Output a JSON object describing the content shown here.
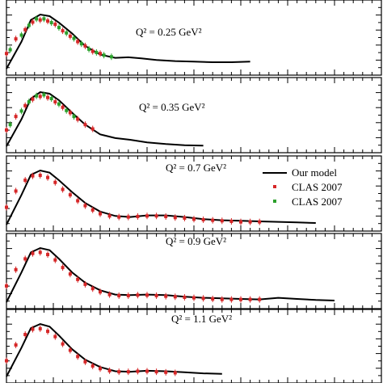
{
  "chart_data": [
    {
      "type": "scatter",
      "label": "Q² = 0.25 GeV²",
      "model": [
        [
          1.0,
          0.0
        ],
        [
          1.08,
          0.5
        ],
        [
          1.13,
          0.9
        ],
        [
          1.18,
          1.0
        ],
        [
          1.23,
          0.97
        ],
        [
          1.28,
          0.85
        ],
        [
          1.35,
          0.65
        ],
        [
          1.42,
          0.42
        ],
        [
          1.5,
          0.26
        ],
        [
          1.58,
          0.2
        ],
        [
          1.65,
          0.21
        ],
        [
          1.72,
          0.19
        ],
        [
          1.8,
          0.16
        ],
        [
          1.9,
          0.14
        ],
        [
          2.0,
          0.13
        ],
        [
          2.1,
          0.12
        ],
        [
          2.2,
          0.12
        ],
        [
          2.3,
          0.13
        ]
      ],
      "series": [
        {
          "name": "CLAS 2007",
          "color": "#d62728",
          "points": [
            [
              1.0,
              0.28
            ],
            [
              1.05,
              0.55
            ],
            [
              1.1,
              0.72
            ],
            [
              1.14,
              0.86
            ],
            [
              1.18,
              0.9
            ],
            [
              1.22,
              0.88
            ],
            [
              1.26,
              0.82
            ],
            [
              1.3,
              0.7
            ],
            [
              1.34,
              0.6
            ],
            [
              1.38,
              0.5
            ],
            [
              1.42,
              0.42
            ],
            [
              1.46,
              0.32
            ],
            [
              1.5,
              0.28
            ]
          ]
        },
        {
          "name": "CLAS 2007",
          "color": "#2ca02c",
          "points": [
            [
              1.02,
              0.35
            ],
            [
              1.08,
              0.62
            ],
            [
              1.12,
              0.8
            ],
            [
              1.16,
              0.92
            ],
            [
              1.2,
              0.92
            ],
            [
              1.24,
              0.85
            ],
            [
              1.28,
              0.76
            ],
            [
              1.32,
              0.66
            ],
            [
              1.36,
              0.56
            ],
            [
              1.4,
              0.46
            ],
            [
              1.44,
              0.36
            ],
            [
              1.48,
              0.3
            ],
            [
              1.52,
              0.25
            ],
            [
              1.56,
              0.22
            ]
          ]
        }
      ]
    },
    {
      "type": "scatter",
      "label": "Q² = 0.35 GeV²",
      "model": [
        [
          1.0,
          0.0
        ],
        [
          1.08,
          0.5
        ],
        [
          1.13,
          0.88
        ],
        [
          1.18,
          1.0
        ],
        [
          1.23,
          0.97
        ],
        [
          1.28,
          0.85
        ],
        [
          1.35,
          0.62
        ],
        [
          1.42,
          0.4
        ],
        [
          1.5,
          0.22
        ],
        [
          1.58,
          0.15
        ],
        [
          1.66,
          0.12
        ],
        [
          1.75,
          0.07
        ],
        [
          1.85,
          0.04
        ],
        [
          1.95,
          0.02
        ],
        [
          2.05,
          0.01
        ]
      ],
      "series": [
        {
          "name": "CLAS 2007",
          "color": "#d62728",
          "points": [
            [
              1.0,
              0.3
            ],
            [
              1.05,
              0.55
            ],
            [
              1.1,
              0.75
            ],
            [
              1.14,
              0.87
            ],
            [
              1.18,
              0.92
            ],
            [
              1.22,
              0.9
            ],
            [
              1.26,
              0.82
            ],
            [
              1.3,
              0.72
            ],
            [
              1.34,
              0.62
            ],
            [
              1.38,
              0.5
            ],
            [
              1.42,
              0.4
            ],
            [
              1.46,
              0.32
            ]
          ]
        },
        {
          "name": "CLAS 2007",
          "color": "#2ca02c",
          "points": [
            [
              1.02,
              0.4
            ],
            [
              1.08,
              0.65
            ],
            [
              1.12,
              0.82
            ],
            [
              1.16,
              0.93
            ],
            [
              1.2,
              0.95
            ],
            [
              1.24,
              0.88
            ],
            [
              1.28,
              0.78
            ],
            [
              1.32,
              0.66
            ],
            [
              1.36,
              0.55
            ]
          ]
        }
      ]
    },
    {
      "type": "scatter",
      "label": "Q² = 0.7 GeV²",
      "legend": {
        "model": "Our model",
        "series": [
          "CLAS 2007",
          "CLAS 2007"
        ]
      },
      "model": [
        [
          1.0,
          0.0
        ],
        [
          1.08,
          0.55
        ],
        [
          1.13,
          0.92
        ],
        [
          1.18,
          1.0
        ],
        [
          1.23,
          0.96
        ],
        [
          1.28,
          0.82
        ],
        [
          1.35,
          0.6
        ],
        [
          1.42,
          0.4
        ],
        [
          1.5,
          0.24
        ],
        [
          1.58,
          0.16
        ],
        [
          1.66,
          0.14
        ],
        [
          1.75,
          0.17
        ],
        [
          1.85,
          0.17
        ],
        [
          1.95,
          0.14
        ],
        [
          2.05,
          0.1
        ],
        [
          2.15,
          0.08
        ],
        [
          2.25,
          0.07
        ],
        [
          2.35,
          0.06
        ],
        [
          2.45,
          0.05
        ],
        [
          2.55,
          0.04
        ],
        [
          2.65,
          0.03
        ]
      ],
      "series": [
        {
          "name": "CLAS 2007",
          "color": "#d62728",
          "points": [
            [
              1.0,
              0.32
            ],
            [
              1.05,
              0.62
            ],
            [
              1.1,
              0.82
            ],
            [
              1.14,
              0.9
            ],
            [
              1.18,
              0.91
            ],
            [
              1.22,
              0.87
            ],
            [
              1.26,
              0.78
            ],
            [
              1.3,
              0.65
            ],
            [
              1.34,
              0.55
            ],
            [
              1.38,
              0.44
            ],
            [
              1.42,
              0.35
            ],
            [
              1.46,
              0.27
            ],
            [
              1.5,
              0.2
            ],
            [
              1.55,
              0.16
            ],
            [
              1.6,
              0.14
            ],
            [
              1.65,
              0.14
            ],
            [
              1.7,
              0.15
            ],
            [
              1.75,
              0.16
            ],
            [
              1.8,
              0.16
            ],
            [
              1.85,
              0.15
            ],
            [
              1.9,
              0.13
            ],
            [
              1.95,
              0.12
            ],
            [
              2.0,
              0.1
            ],
            [
              2.05,
              0.09
            ],
            [
              2.1,
              0.08
            ],
            [
              2.15,
              0.07
            ],
            [
              2.2,
              0.06
            ],
            [
              2.25,
              0.05
            ],
            [
              2.3,
              0.05
            ],
            [
              2.35,
              0.05
            ]
          ]
        },
        {
          "name": "CLAS 2007",
          "color": "#2ca02c",
          "points": []
        }
      ]
    },
    {
      "type": "scatter",
      "label": "Q² = 0.9 GeV²",
      "model": [
        [
          1.0,
          0.0
        ],
        [
          1.08,
          0.55
        ],
        [
          1.13,
          0.92
        ],
        [
          1.18,
          1.0
        ],
        [
          1.23,
          0.96
        ],
        [
          1.28,
          0.8
        ],
        [
          1.35,
          0.55
        ],
        [
          1.42,
          0.36
        ],
        [
          1.5,
          0.22
        ],
        [
          1.58,
          0.14
        ],
        [
          1.66,
          0.13
        ],
        [
          1.75,
          0.14
        ],
        [
          1.85,
          0.13
        ],
        [
          1.95,
          0.1
        ],
        [
          2.05,
          0.08
        ],
        [
          2.15,
          0.07
        ],
        [
          2.25,
          0.06
        ],
        [
          2.35,
          0.05
        ],
        [
          2.45,
          0.08
        ],
        [
          2.55,
          0.06
        ],
        [
          2.65,
          0.04
        ],
        [
          2.75,
          0.03
        ]
      ],
      "series": [
        {
          "name": "CLAS 2007",
          "color": "#d62728",
          "points": [
            [
              1.0,
              0.3
            ],
            [
              1.05,
              0.6
            ],
            [
              1.1,
              0.8
            ],
            [
              1.14,
              0.9
            ],
            [
              1.18,
              0.92
            ],
            [
              1.22,
              0.88
            ],
            [
              1.26,
              0.78
            ],
            [
              1.3,
              0.64
            ],
            [
              1.34,
              0.52
            ],
            [
              1.38,
              0.42
            ],
            [
              1.42,
              0.33
            ],
            [
              1.46,
              0.25
            ],
            [
              1.5,
              0.19
            ],
            [
              1.55,
              0.14
            ],
            [
              1.6,
              0.12
            ],
            [
              1.65,
              0.12
            ],
            [
              1.7,
              0.13
            ],
            [
              1.75,
              0.13
            ],
            [
              1.8,
              0.12
            ],
            [
              1.85,
              0.11
            ],
            [
              1.9,
              0.1
            ],
            [
              1.95,
              0.09
            ],
            [
              2.0,
              0.08
            ],
            [
              2.05,
              0.07
            ],
            [
              2.1,
              0.06
            ],
            [
              2.15,
              0.05
            ],
            [
              2.2,
              0.05
            ],
            [
              2.25,
              0.05
            ],
            [
              2.3,
              0.05
            ],
            [
              2.35,
              0.05
            ]
          ]
        },
        {
          "name": "CLAS 2007",
          "color": "#2ca02c",
          "points": []
        }
      ]
    },
    {
      "type": "scatter",
      "label": "Q² = 1.1 GeV²",
      "model": [
        [
          1.0,
          0.0
        ],
        [
          1.08,
          0.55
        ],
        [
          1.13,
          0.92
        ],
        [
          1.18,
          1.0
        ],
        [
          1.23,
          0.95
        ],
        [
          1.28,
          0.78
        ],
        [
          1.35,
          0.52
        ],
        [
          1.42,
          0.32
        ],
        [
          1.5,
          0.18
        ],
        [
          1.58,
          0.1
        ],
        [
          1.66,
          0.09
        ],
        [
          1.75,
          0.11
        ],
        [
          1.85,
          0.1
        ],
        [
          1.95,
          0.08
        ],
        [
          2.05,
          0.06
        ],
        [
          2.15,
          0.05
        ]
      ],
      "series": [
        {
          "name": "CLAS 2007",
          "color": "#d62728",
          "points": [
            [
              1.0,
              0.3
            ],
            [
              1.05,
              0.6
            ],
            [
              1.1,
              0.8
            ],
            [
              1.14,
              0.9
            ],
            [
              1.18,
              0.91
            ],
            [
              1.22,
              0.86
            ],
            [
              1.26,
              0.76
            ],
            [
              1.3,
              0.62
            ],
            [
              1.34,
              0.5
            ],
            [
              1.38,
              0.38
            ],
            [
              1.42,
              0.28
            ],
            [
              1.46,
              0.2
            ],
            [
              1.5,
              0.15
            ],
            [
              1.55,
              0.11
            ],
            [
              1.6,
              0.09
            ],
            [
              1.65,
              0.09
            ],
            [
              1.7,
              0.1
            ],
            [
              1.75,
              0.1
            ],
            [
              1.8,
              0.09
            ],
            [
              1.85,
              0.08
            ],
            [
              1.9,
              0.07
            ]
          ]
        },
        {
          "name": "CLAS 2007",
          "color": "#2ca02c",
          "points": []
        }
      ]
    }
  ]
}
